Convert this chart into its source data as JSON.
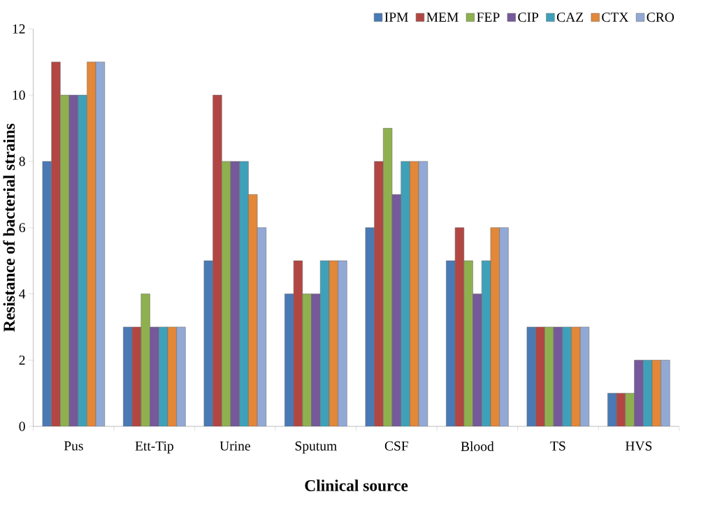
{
  "chart_data": {
    "type": "bar",
    "xlabel": "Clinical source",
    "ylabel": "Resistance of bacterial strains",
    "categories": [
      "Pus",
      "Ett-Tip",
      "Urine",
      "Sputum",
      "CSF",
      "Blood",
      "TS",
      "HVS"
    ],
    "series": [
      {
        "name": "IPM",
        "color": "#4a7ab5",
        "values": [
          8,
          3,
          5,
          4,
          6,
          5,
          3,
          1
        ]
      },
      {
        "name": "MEM",
        "color": "#b24643",
        "values": [
          11,
          3,
          10,
          5,
          8,
          6,
          3,
          1
        ]
      },
      {
        "name": "FEP",
        "color": "#8fb04f",
        "values": [
          10,
          4,
          8,
          4,
          9,
          5,
          3,
          1
        ]
      },
      {
        "name": "CIP",
        "color": "#76599a",
        "values": [
          10,
          3,
          8,
          4,
          7,
          4,
          3,
          2
        ]
      },
      {
        "name": "CAZ",
        "color": "#3fa1b9",
        "values": [
          10,
          3,
          8,
          5,
          8,
          5,
          3,
          2
        ]
      },
      {
        "name": "CTX",
        "color": "#e38739",
        "values": [
          11,
          3,
          7,
          5,
          8,
          6,
          3,
          2
        ]
      },
      {
        "name": "CRO",
        "color": "#93a9d5",
        "values": [
          11,
          3,
          6,
          5,
          8,
          6,
          3,
          2
        ]
      }
    ],
    "ylim": [
      0,
      12
    ],
    "yticks": [
      0,
      2,
      4,
      6,
      8,
      10,
      12
    ],
    "grid": false,
    "legend": "top right"
  }
}
